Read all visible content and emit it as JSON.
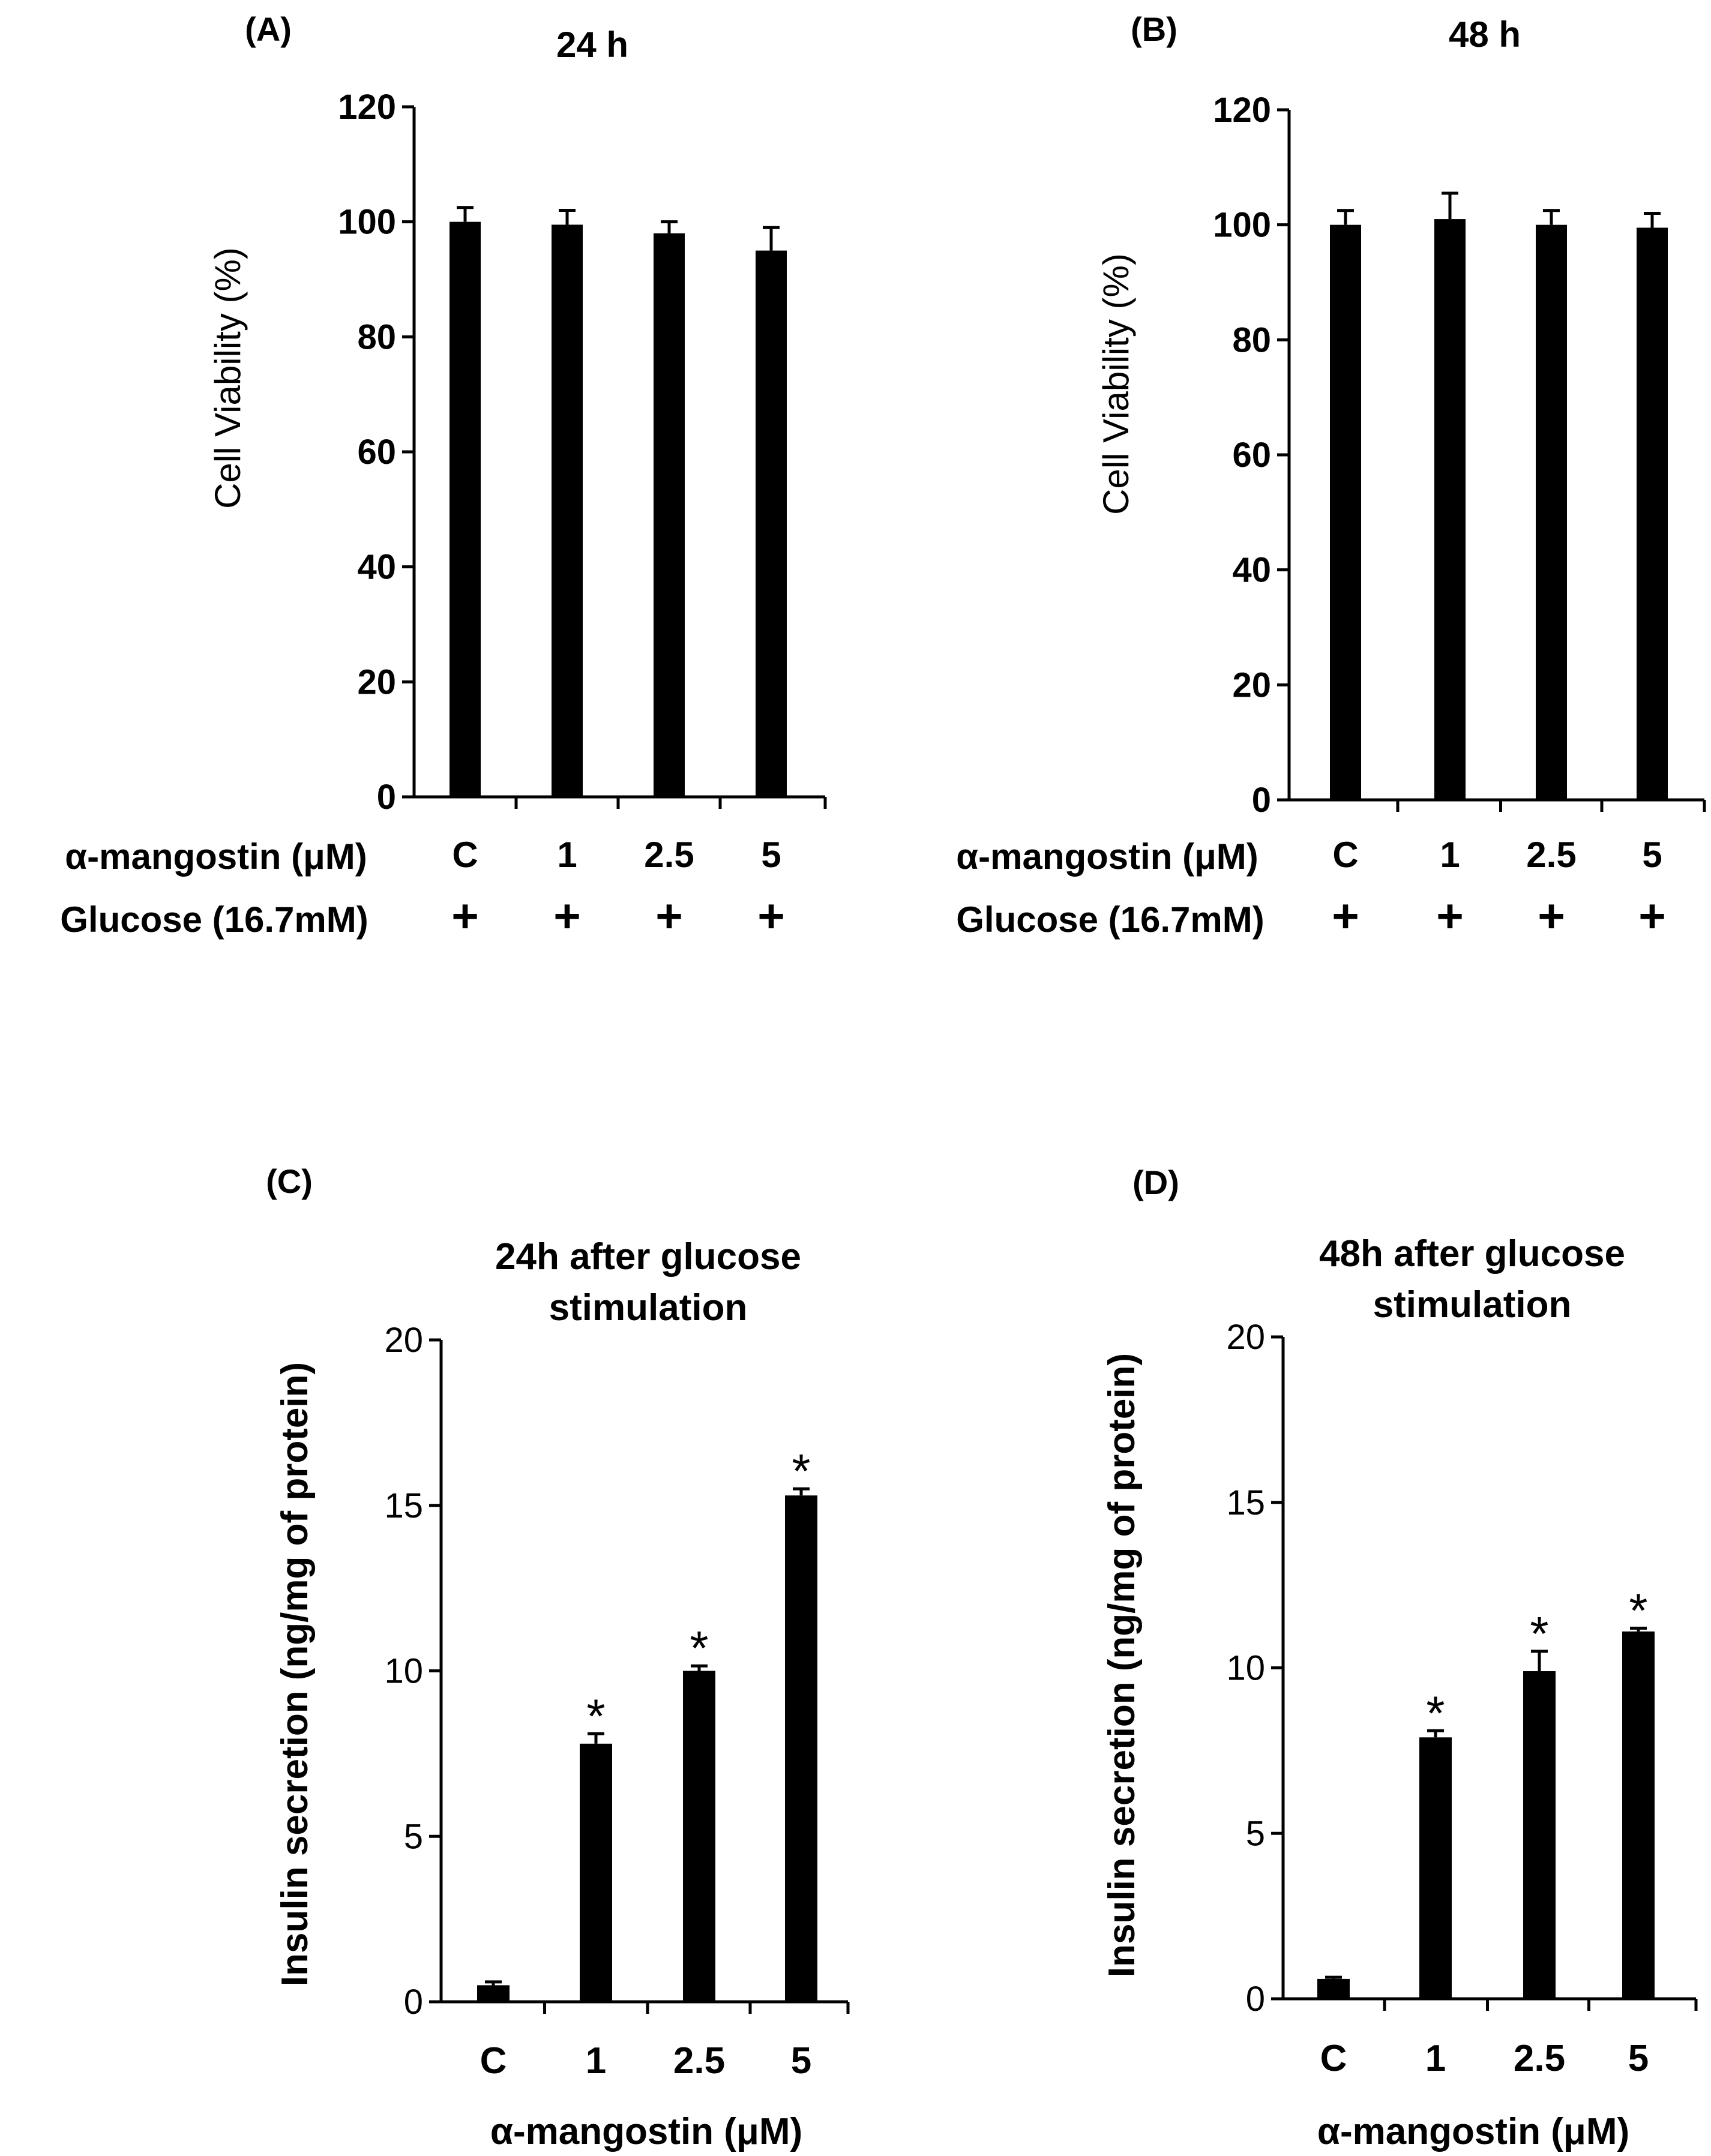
{
  "panels": [
    {
      "label": "(A)"
    },
    {
      "label": "(B)"
    },
    {
      "label": "(C)"
    },
    {
      "label": "(D)"
    }
  ],
  "row_labels": {
    "compound": "α-mangostin  (μM)",
    "glucose": "Glucose (16.7mM)",
    "glucose_marks": [
      "+",
      "+",
      "+",
      "+"
    ]
  },
  "chart_data": [
    {
      "type": "bar",
      "panel": "(A)",
      "title": "24 h",
      "ylabel": "Cell Viability (%)",
      "xlabel": "",
      "categories": [
        "C",
        "1",
        "2.5",
        "5"
      ],
      "values": [
        100,
        99.5,
        98,
        95
      ],
      "errors": [
        2.5,
        2.5,
        2,
        4
      ],
      "significance": [
        "",
        "",
        "",
        ""
      ],
      "ylim": [
        0,
        120
      ],
      "yticks": [
        0,
        20,
        40,
        60,
        80,
        100,
        120
      ]
    },
    {
      "type": "bar",
      "panel": "(B)",
      "title": "48 h",
      "ylabel": "Cell Viability (%)",
      "xlabel": "",
      "categories": [
        "C",
        "1",
        "2.5",
        "5"
      ],
      "values": [
        100,
        101,
        100,
        99.5
      ],
      "errors": [
        2.5,
        4.5,
        2.5,
        2.5
      ],
      "significance": [
        "",
        "",
        "",
        ""
      ],
      "ylim": [
        0,
        120
      ],
      "yticks": [
        0,
        20,
        40,
        60,
        80,
        100,
        120
      ]
    },
    {
      "type": "bar",
      "panel": "(C)",
      "title": "24h after glucose stimulation",
      "title_lines": [
        "24h after glucose",
        "stimulation"
      ],
      "ylabel": "Insulin secretion (ng/mg of protein)",
      "xlabel": "α-mangostin  (μM)",
      "categories": [
        "C",
        "1",
        "2.5",
        "5"
      ],
      "values": [
        0.5,
        7.8,
        10.0,
        15.3
      ],
      "errors": [
        0.1,
        0.3,
        0.15,
        0.2
      ],
      "significance": [
        "",
        "*",
        "*",
        "*"
      ],
      "ylim": [
        0,
        20
      ],
      "yticks": [
        0,
        5,
        10,
        15,
        20
      ]
    },
    {
      "type": "bar",
      "panel": "(D)",
      "title": "48h after glucose stimulation",
      "title_lines": [
        "48h after glucose",
        "stimulation"
      ],
      "ylabel": "Insulin secretion (ng/mg of protein)",
      "xlabel": "α-mangostin  (μM)",
      "categories": [
        "C",
        "1",
        "2.5",
        "5"
      ],
      "values": [
        0.6,
        7.9,
        9.9,
        11.1
      ],
      "errors": [
        0.05,
        0.2,
        0.6,
        0.1
      ],
      "significance": [
        "",
        "*",
        "*",
        "*"
      ],
      "ylim": [
        0,
        20
      ],
      "yticks": [
        0,
        5,
        10,
        15,
        20
      ]
    }
  ]
}
